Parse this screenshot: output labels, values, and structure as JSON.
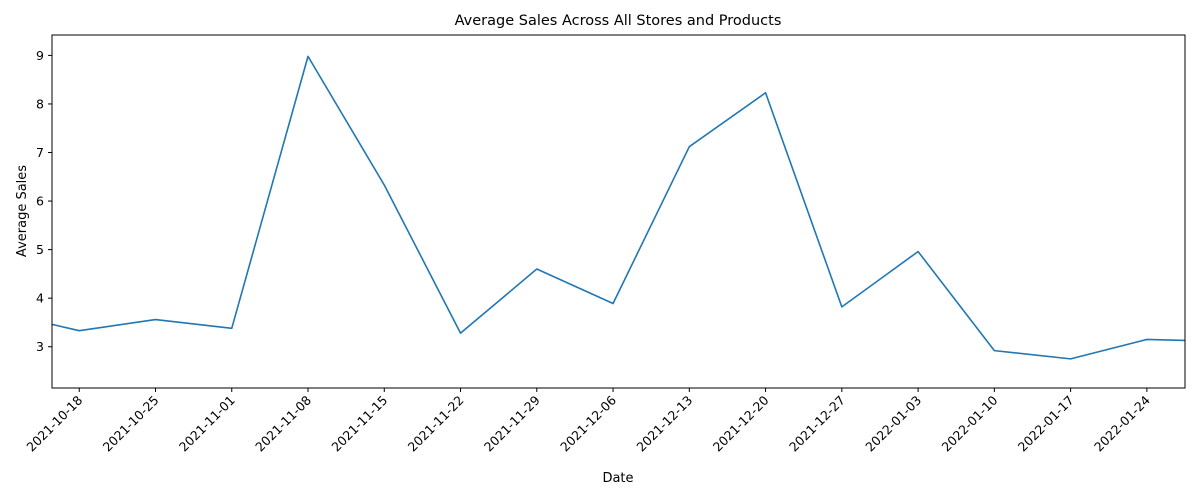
{
  "chart_data": {
    "type": "line",
    "title": "Average Sales Across All Stores and Products",
    "xlabel": "Date",
    "ylabel": "Average Sales",
    "x_ticks": [
      "2021-10-18",
      "2021-10-25",
      "2021-11-01",
      "2021-11-08",
      "2021-11-15",
      "2021-11-22",
      "2021-11-29",
      "2021-12-06",
      "2021-12-13",
      "2021-12-20",
      "2021-12-27",
      "2022-01-03",
      "2022-01-10",
      "2022-01-17",
      "2022-01-24"
    ],
    "y_ticks": [
      3,
      4,
      5,
      6,
      7,
      8,
      9
    ],
    "xlim": [
      "2021-10-15.5",
      "2022-01-27.5"
    ],
    "ylim": [
      2.15,
      9.42
    ],
    "grid": false,
    "series": [
      {
        "color": "#1f77b4",
        "x": [
          "2021-10-15.5",
          "2021-10-18",
          "2021-10-25",
          "2021-11-01",
          "2021-11-08",
          "2021-11-15",
          "2021-11-22",
          "2021-11-29",
          "2021-12-06",
          "2021-12-13",
          "2021-12-20",
          "2021-12-27",
          "2022-01-03",
          "2022-01-10",
          "2022-01-17",
          "2022-01-24",
          "2022-01-27.5"
        ],
        "values": [
          3.46,
          3.33,
          3.56,
          3.38,
          8.98,
          6.33,
          3.28,
          4.6,
          3.89,
          7.12,
          8.23,
          3.82,
          4.96,
          2.92,
          2.75,
          3.15,
          3.13
        ]
      }
    ]
  }
}
